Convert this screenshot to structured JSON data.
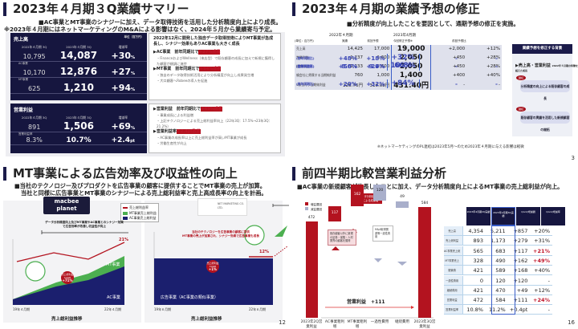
{
  "slide1": {
    "title": "2023年４月期３Q業績サマリー",
    "subtitle1": "■AC事業とMT事業のシナジーに加え、データ取得技術を活用した分析精度向上により成長。",
    "subtitle2": "※2023年４月期にはネットマーケティングのM&Aによる影響はなく、2024年５月から業績寄与予定。",
    "revenue": {
      "label": "売上高",
      "unit": "単位（百万円）",
      "col_prev": "2022年４月期 3Q",
      "col_curr": "2023年４月期 3Q",
      "col_rate": "増減率",
      "total": {
        "prev": "10,795",
        "curr": "14,087",
        "rate": "+30",
        "suffix": "%"
      },
      "ac": {
        "label": "AC事業",
        "prev": "10,170",
        "curr": "12,876",
        "rate": "+27",
        "suffix": "%"
      },
      "mt": {
        "label": "MT事業",
        "prev": "625",
        "curr": "1,210",
        "rate": "+94",
        "suffix": "%"
      }
    },
    "op_profit": {
      "label": "営業利益",
      "col_prev": "2022年４月期 3Q",
      "col_curr": "2023年４月期 3Q",
      "col_rate": "増減率",
      "total": {
        "prev": "891",
        "curr": "1,506",
        "rate": "+69",
        "suffix": "%"
      },
      "margin": {
        "label": "営業利益率",
        "prev": "8.3%",
        "curr": "10.7%",
        "rate": "+2.4",
        "suffix": "pt"
      }
    },
    "box1": {
      "headline": "2022年12月に開発した独自データ取得技術によりMT事業が急成長し、シナジー効果もありAC事業も大きく成長",
      "ac_head": "▶AC事業　前年同期比で",
      "ac_val": "＋27%成長",
      "ac_note": "・FinanceおよびWellness（来店型）で既存顧客の成長に加えて新規に獲得した顧客が順調に進捗",
      "mt_head": "▶MT事業　前年同期比で",
      "mt_val": "＋94%成長",
      "mt_note1": "・独自のデータ取得技術活用により分析精度が向上し成果発生増",
      "mt_note2": "・大口顧客へRobeeの導入を促進"
    },
    "box2": {
      "op_head": "▶営業利益　前年同期比で",
      "op_val": "＋69%成長",
      "op_note1": "・事業成長による利益増",
      "op_note2": "・上記テクノロジーによる売上総利益率向上（22年3Q：17.5%→23年3Q：21.2%）",
      "mg_head": "▶営業利益率",
      "mg_val": "＋2.4pt改善",
      "mg_note1": "・AC事業の成長率以上に売上総利益率が高いMT事業が成長",
      "mg_note2": "・労働生産性が向上"
    }
  },
  "slide2": {
    "title": "2023年４月期の業績予想の修正",
    "subtitle": "■分析精度が向上したことを要因として、通期予想の修正を実施。",
    "period_prev": "2022年４月期",
    "period_curr": "2023年4月期",
    "unit": "(単位：百万円)",
    "headers": [
      "実績",
      "前回予想",
      "今回修正予想※",
      "前回予想比"
    ],
    "rows": [
      {
        "label": "売上高",
        "cells": [
          "14,425",
          "17,000",
          "19,000",
          "+2,000",
          "+12%"
        ],
        "type": "hl"
      },
      {
        "label": "(前年同期比)",
        "cells": [
          "+48%",
          "+18%",
          "+32%",
          "-",
          "-"
        ],
        "type": "sub"
      },
      {
        "label": "営業利益",
        "cells": [
          "1,237",
          "1,600",
          "2,050",
          "+450",
          "+28%"
        ],
        "type": "hl"
      },
      {
        "label": "(営業利益率)",
        "cells": [
          "8.6%",
          "9.4%",
          "10.8%",
          "-",
          "-"
        ],
        "type": "sub"
      },
      {
        "label": "(前年同期比)",
        "cells": [
          "+58%",
          "+29%",
          "66%",
          "-",
          "-"
        ],
        "type": "sub"
      },
      {
        "label": "経常利益",
        "cells": [
          "1,233",
          "1,600",
          "2,050",
          "+450",
          "+28%"
        ],
        "type": "hl"
      },
      {
        "label": "親会社に帰属する当期純利益",
        "cells": [
          "760",
          "1,000",
          "1,400",
          "+400",
          "+40%"
        ],
        "type": "hl"
      },
      {
        "label": "(前年同期比)",
        "cells": [
          "+20%",
          "+32%",
          "+84%",
          "-",
          "-"
        ],
        "type": "sub"
      },
      {
        "label": "1株当たり当期純利益",
        "cells": [
          "225.76円",
          "310.08円",
          "431.40円",
          "-",
          "-"
        ],
        "type": "hl"
      }
    ],
    "footnote": "※ネットマーケティングのPL連結は2023年5月〜のため2023年４月期に与える影響は軽微",
    "reason_header": "業績予想を修正する背景",
    "reason_title": "▶売上高・営業利益",
    "reason_note": "2022年４月期の特徴を超えた成長",
    "tag": "継続",
    "reasons": [
      "分析精度の向上による既存顧客の成長",
      "既存顧客の実績を活用した新規顧客の開拓"
    ],
    "page": "3"
  },
  "slide3": {
    "title": "MT事業による広告効率及び収益性の向上",
    "subtitle1": "■当社のテクノロジー及びプロダクトを広告事業の顧客に提供することでMT事業の売上が加算。",
    "subtitle2": "当社と同様に広告事業とMT事業のシナジーによる売上総利益率と売上高成長率の向上を計画。",
    "logo_left": "macbee planet",
    "logo_right": "NET MARKETING CO. LTD.",
    "legend": [
      "売上総利益率",
      "MT事業売上総利益",
      "AC事業売上総利益"
    ],
    "left_note": "データ分析精度向上及びMT事業やAC事業とのシナジー効果で広告効率が改善し収益性が向上",
    "right_note1": "当社のテクノロジーを広告事業の顧客に提供",
    "right_note2": "MT事業の売上が加算され、シナジー効果で広告事業も成長",
    "left_cagr": {
      "label": "売上総利益 CAGR",
      "value": "+71%"
    },
    "right_cagr": {
      "label": "売上総利益 CAGR",
      "value": "+1%"
    },
    "left_rate_end": "21%",
    "right_rate": "12%",
    "left_mt_label": "MT事業",
    "left_ac_label": "AC事業",
    "right_ad_label": "広告事業（AC事業の類似事業）",
    "left_x": [
      "19年４月期",
      "22年４月期"
    ],
    "right_x": [
      "19年６月期",
      "22年６月期"
    ],
    "chart_title": "売上総利益推移",
    "page": "12"
  },
  "slide4": {
    "title": "前四半期比較営業利益分析",
    "subtitle": "■AC事業の新規顧客が伸長したことに加え、データ分析精度向上によるMT事業の売上総利益が向上。",
    "legend": [
      "増益要因",
      "減益要因"
    ],
    "callout_top": "データ分析精度向上による成果増",
    "callout_ac": "既存顧客以外に新規の証券・保険・人材業界の顧客を獲得",
    "callout_ma": "M&A取得関連等一過性費用",
    "total_label": "営業利益　+111",
    "headers": [
      "2023年4月期2Q実績",
      "2023年4月期3Q実績",
      "QonQ増減額",
      "QonQ増減率"
    ],
    "rows": [
      {
        "label": "売上高",
        "cells": [
          "4,354",
          "5,211",
          "+857",
          "+20%"
        ]
      },
      {
        "label": "売上総利益",
        "cells": [
          "893",
          "1,173",
          "+279",
          "+31%"
        ]
      },
      {
        "label": "AC事業売上総利益",
        "cells": [
          "565",
          "683",
          "+117",
          "+21%"
        ],
        "red": true
      },
      {
        "label": "MT事業売上総利益",
        "cells": [
          "328",
          "490",
          "+162",
          "+49%"
        ],
        "red": true
      },
      {
        "label": "販管費",
        "cells": [
          "421",
          "589",
          "+168",
          "+40%"
        ]
      },
      {
        "label": "一過性費用",
        "cells": [
          "0",
          "120",
          "+120",
          "-"
        ]
      },
      {
        "label": "継続費用",
        "cells": [
          "421",
          "470",
          "+49",
          "+12%"
        ]
      },
      {
        "label": "営業利益",
        "cells": [
          "472",
          "584",
          "+111",
          "+24%"
        ],
        "red": true
      },
      {
        "label": "営業利益率",
        "cells": [
          "10.8%",
          "11.2%",
          "+0.4pt",
          "-"
        ]
      }
    ],
    "page": "16"
  },
  "chart_data": [
    {
      "type": "bar",
      "title": "前四半期比較営業利益分析（ウォーターフォール）",
      "categories": [
        "2023年2Q営業利益",
        "AC事業粗利増",
        "MT事業粗利増",
        "一過性費用",
        "継続費用",
        "2023年3Q営業利益"
      ],
      "values": [
        472,
        117,
        162,
        -120,
        -49,
        584
      ],
      "annotation": "営業利益 +111"
    },
    {
      "type": "area",
      "title": "売上総利益推移",
      "x": [
        "19年4月期",
        "22年4月期"
      ],
      "series": [
        {
          "name": "AC事業売上総利益"
        },
        {
          "name": "MT事業売上総利益"
        },
        {
          "name": "売上総利益率",
          "end_value": "21%"
        }
      ],
      "annotation": "売上総利益 CAGR +71%"
    }
  ]
}
